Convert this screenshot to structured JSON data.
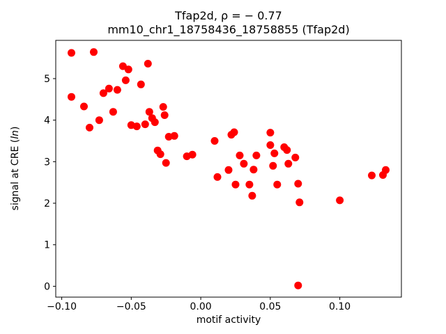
{
  "chart_data": {
    "type": "scatter",
    "title": "Tfap2d, ρ = − 0.77",
    "subtitle": "mm10_chr1_18758436_18758855 (Tfap2d)",
    "xlabel": "motif activity",
    "ylabel": "signal at CRE (ln)",
    "ylabel_prefix": "signal at CRE (",
    "ylabel_italic": "ln",
    "ylabel_suffix": ")",
    "marker_color": "#ff0000",
    "marker_radius": 5.5,
    "legend": "none",
    "grid": false,
    "xlim": [
      -0.1043,
      0.1443
    ],
    "ylim": [
      -0.261,
      5.921
    ],
    "xticks": [
      -0.1,
      -0.05,
      0.0,
      0.05,
      0.1
    ],
    "xtick_labels": [
      "−0.10",
      "−0.05",
      "0.00",
      "0.05",
      "0.10"
    ],
    "yticks": [
      0,
      1,
      2,
      3,
      4,
      5
    ],
    "ytick_labels": [
      "0",
      "1",
      "2",
      "3",
      "4",
      "5"
    ],
    "points": [
      [
        -0.093,
        5.62
      ],
      [
        -0.077,
        5.64
      ],
      [
        -0.093,
        4.56
      ],
      [
        -0.084,
        4.33
      ],
      [
        -0.08,
        3.82
      ],
      [
        -0.073,
        4.0
      ],
      [
        -0.07,
        4.65
      ],
      [
        -0.066,
        4.76
      ],
      [
        -0.063,
        4.2
      ],
      [
        -0.06,
        4.73
      ],
      [
        -0.056,
        5.3
      ],
      [
        -0.054,
        4.96
      ],
      [
        -0.052,
        5.22
      ],
      [
        -0.05,
        3.88
      ],
      [
        -0.046,
        3.85
      ],
      [
        -0.043,
        4.86
      ],
      [
        -0.04,
        3.9
      ],
      [
        -0.038,
        5.36
      ],
      [
        -0.037,
        4.2
      ],
      [
        -0.035,
        4.05
      ],
      [
        -0.033,
        3.95
      ],
      [
        -0.031,
        3.27
      ],
      [
        -0.029,
        3.18
      ],
      [
        -0.027,
        4.32
      ],
      [
        -0.026,
        4.12
      ],
      [
        -0.025,
        2.97
      ],
      [
        -0.023,
        3.6
      ],
      [
        -0.019,
        3.62
      ],
      [
        -0.01,
        3.13
      ],
      [
        -0.006,
        3.17
      ],
      [
        0.01,
        3.5
      ],
      [
        0.012,
        2.63
      ],
      [
        0.02,
        2.8
      ],
      [
        0.022,
        3.65
      ],
      [
        0.024,
        3.71
      ],
      [
        0.025,
        2.45
      ],
      [
        0.028,
        3.15
      ],
      [
        0.031,
        2.95
      ],
      [
        0.035,
        2.45
      ],
      [
        0.037,
        2.18
      ],
      [
        0.038,
        2.81
      ],
      [
        0.04,
        3.15
      ],
      [
        0.05,
        3.7
      ],
      [
        0.05,
        3.4
      ],
      [
        0.052,
        2.9
      ],
      [
        0.053,
        3.2
      ],
      [
        0.055,
        2.45
      ],
      [
        0.06,
        3.35
      ],
      [
        0.062,
        3.28
      ],
      [
        0.063,
        2.95
      ],
      [
        0.068,
        3.1
      ],
      [
        0.07,
        2.47
      ],
      [
        0.071,
        2.02
      ],
      [
        0.07,
        0.02
      ],
      [
        0.1,
        2.07
      ],
      [
        0.123,
        2.67
      ],
      [
        0.131,
        2.68
      ],
      [
        0.133,
        2.8
      ]
    ]
  }
}
